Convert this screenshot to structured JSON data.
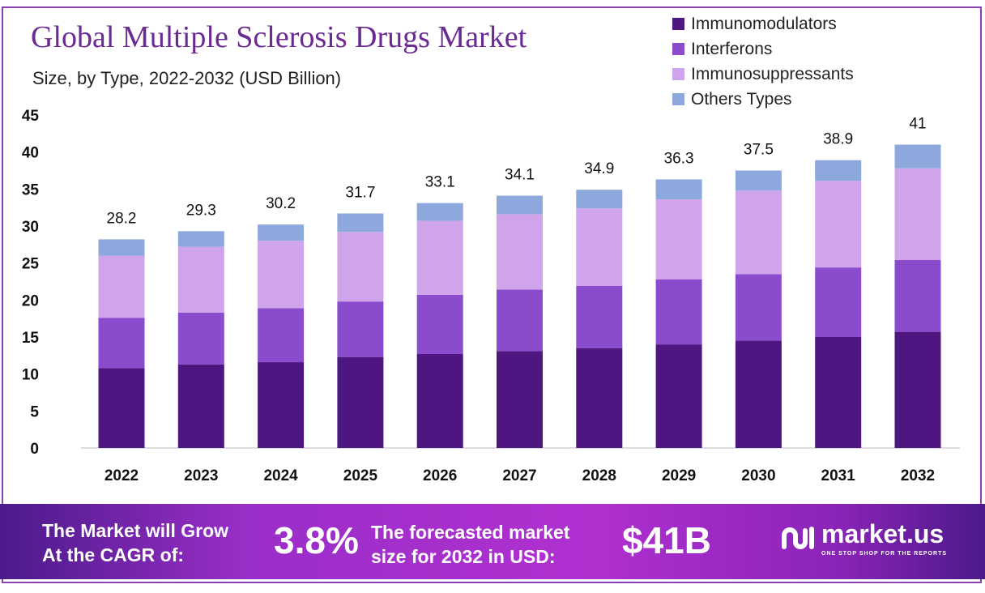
{
  "title": "Global Multiple Sclerosis Drugs Market",
  "subtitle": "Size, by Type, 2022-2032 (USD Billion)",
  "chart_data": {
    "type": "bar",
    "stacked": true,
    "title": "Global Multiple Sclerosis Drugs Market",
    "subtitle": "Size, by Type, 2022-2032 (USD Billion)",
    "categories": [
      "2022",
      "2023",
      "2024",
      "2025",
      "2026",
      "2027",
      "2028",
      "2029",
      "2030",
      "2031",
      "2032"
    ],
    "series": [
      {
        "name": "Immunomodulators",
        "color": "#4e1680",
        "values": [
          10.8,
          11.3,
          11.6,
          12.3,
          12.7,
          13.1,
          13.5,
          14.0,
          14.5,
          15.0,
          15.7
        ]
      },
      {
        "name": "Interferons",
        "color": "#8a4ccc",
        "values": [
          6.8,
          7.0,
          7.3,
          7.5,
          8.0,
          8.3,
          8.4,
          8.8,
          9.0,
          9.4,
          9.7
        ]
      },
      {
        "name": "Immunosuppressants",
        "color": "#d0a4ea",
        "values": [
          8.4,
          8.9,
          9.1,
          9.4,
          10.0,
          10.2,
          10.5,
          10.8,
          11.3,
          11.7,
          12.4
        ]
      },
      {
        "name": "Others Types",
        "color": "#8ca8dc",
        "values": [
          2.2,
          2.1,
          2.2,
          2.5,
          2.4,
          2.5,
          2.5,
          2.7,
          2.7,
          2.8,
          3.2
        ]
      }
    ],
    "totals": [
      "28.2",
      "29.3",
      "30.2",
      "31.7",
      "33.1",
      "34.1",
      "34.9",
      "36.3",
      "37.5",
      "38.9",
      "41"
    ],
    "ylim": [
      0,
      45
    ],
    "yticks": [
      "0",
      "5",
      "10",
      "15",
      "20",
      "25",
      "30",
      "35",
      "40",
      "45"
    ],
    "grid": false,
    "legend": "top-right"
  },
  "footer": {
    "cagr_label_1": "The Market will Grow",
    "cagr_label_2": "At the CAGR of:",
    "cagr_value": "3.8%",
    "forecast_label_1": "The forecasted market",
    "forecast_label_2": "size for 2032 in USD:",
    "forecast_value": "$41B",
    "brand": "market.us",
    "tagline": "ONE STOP SHOP FOR THE REPORTS"
  }
}
